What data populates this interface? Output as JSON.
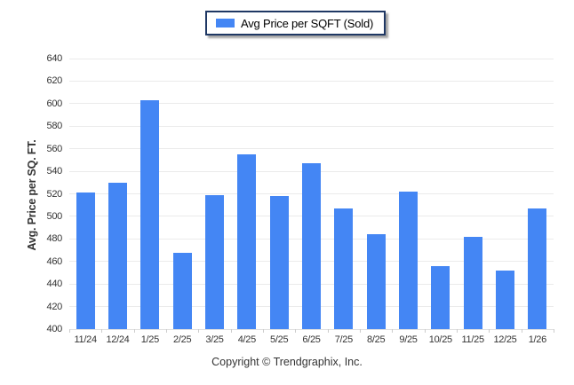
{
  "legend": {
    "label": "Avg Price per SQFT (Sold)",
    "swatch_color": "#4486f4"
  },
  "footer": {
    "copyright": "Copyright © Trendgraphix, Inc."
  },
  "chart_data": {
    "type": "bar",
    "title": "",
    "xlabel": "",
    "ylabel": "Avg. Price per SQ. FT.",
    "categories": [
      "11/24",
      "12/24",
      "1/25",
      "2/25",
      "3/25",
      "4/25",
      "5/25",
      "6/25",
      "7/25",
      "8/25",
      "9/25",
      "10/25",
      "11/25",
      "12/25",
      "1/26"
    ],
    "series": [
      {
        "name": "Avg Price per SQFT (Sold)",
        "values": [
          521,
          530,
          603,
          468,
          519,
          555,
          518,
          547,
          507,
          484,
          522,
          456,
          482,
          452,
          507
        ]
      }
    ],
    "ylim": [
      400,
      640
    ],
    "ytick_interval": 20,
    "grid": true,
    "legend_position": "top-center",
    "bar_color": "#4486f4"
  }
}
